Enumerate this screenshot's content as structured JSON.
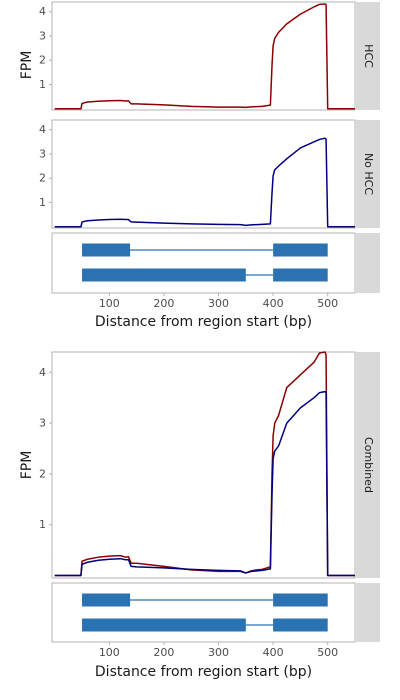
{
  "colors": {
    "hcc": "#8b0000",
    "no_hcc": "#00007f",
    "exon": "#2b72b3",
    "strip": "#d9d9d9",
    "frame": "#b3b3b3",
    "tick_text": "#4d4d4d",
    "title_text": "#1a1a1a"
  },
  "chart_data": [
    {
      "type": "line",
      "ylabel": "FPM",
      "xlabel": "Distance from region start (bp)",
      "xlim": [
        -5,
        550
      ],
      "x_ticks": [
        100,
        200,
        300,
        400,
        500
      ],
      "facets": [
        {
          "strip": "HCC",
          "ylim": [
            -0.05,
            4.4
          ],
          "y_ticks": [
            1,
            2,
            3,
            4
          ],
          "series": [
            {
              "color_key": "hcc",
              "x": [
                0,
                48,
                50,
                60,
                80,
                100,
                120,
                130,
                135,
                140,
                150,
                200,
                250,
                300,
                340,
                350,
                360,
                370,
                380,
                395,
                398,
                400,
                403,
                410,
                425,
                450,
                475,
                485,
                495,
                497,
                500,
                550
              ],
              "y": [
                0,
                0,
                0.22,
                0.28,
                0.31,
                0.33,
                0.34,
                0.32,
                0.33,
                0.2,
                0.2,
                0.16,
                0.1,
                0.07,
                0.07,
                0.06,
                0.08,
                0.09,
                0.1,
                0.15,
                1.8,
                2.6,
                2.9,
                3.15,
                3.5,
                3.9,
                4.2,
                4.3,
                4.32,
                4.3,
                0,
                0
              ]
            }
          ]
        },
        {
          "strip": "No HCC",
          "ylim": [
            -0.05,
            4.4
          ],
          "y_ticks": [
            1,
            2,
            3,
            4
          ],
          "series": [
            {
              "color_key": "no_hcc",
              "x": [
                0,
                48,
                50,
                60,
                80,
                100,
                120,
                130,
                135,
                140,
                150,
                200,
                250,
                300,
                340,
                350,
                360,
                370,
                380,
                395,
                398,
                400,
                403,
                410,
                425,
                450,
                475,
                485,
                495,
                497,
                500,
                550
              ],
              "y": [
                0,
                0,
                0.2,
                0.25,
                0.28,
                0.3,
                0.31,
                0.3,
                0.3,
                0.2,
                0.19,
                0.15,
                0.12,
                0.1,
                0.09,
                0.06,
                0.08,
                0.09,
                0.1,
                0.12,
                1.4,
                2.1,
                2.35,
                2.5,
                2.8,
                3.25,
                3.5,
                3.6,
                3.65,
                3.6,
                0,
                0
              ]
            }
          ]
        }
      ],
      "transcripts": [
        [
          [
            50,
            138
          ],
          [
            400,
            500
          ]
        ],
        [
          [
            50,
            350
          ],
          [
            400,
            500
          ]
        ]
      ]
    },
    {
      "type": "line",
      "ylabel": "FPM",
      "xlabel": "Distance from region start (bp)",
      "xlim": [
        -5,
        550
      ],
      "x_ticks": [
        100,
        200,
        300,
        400,
        500
      ],
      "facets": [
        {
          "strip": "Combined",
          "ylim": [
            -0.05,
            4.4
          ],
          "y_ticks": [
            1,
            2,
            3,
            4
          ],
          "series": [
            {
              "color_key": "hcc",
              "x": [
                0,
                48,
                50,
                60,
                80,
                100,
                120,
                130,
                135,
                140,
                150,
                200,
                250,
                300,
                340,
                350,
                360,
                370,
                380,
                395,
                398,
                400,
                403,
                410,
                425,
                450,
                475,
                485,
                495,
                497,
                500,
                550
              ],
              "y": [
                0,
                0,
                0.28,
                0.32,
                0.36,
                0.38,
                0.39,
                0.36,
                0.37,
                0.24,
                0.24,
                0.18,
                0.11,
                0.08,
                0.08,
                0.05,
                0.09,
                0.11,
                0.12,
                0.17,
                2.0,
                2.75,
                3.0,
                3.15,
                3.7,
                3.95,
                4.2,
                4.38,
                4.4,
                4.34,
                0,
                0
              ]
            },
            {
              "color_key": "no_hcc",
              "x": [
                0,
                48,
                50,
                60,
                80,
                100,
                120,
                130,
                135,
                140,
                150,
                200,
                250,
                300,
                340,
                350,
                360,
                370,
                380,
                395,
                398,
                400,
                403,
                410,
                425,
                450,
                475,
                485,
                495,
                497,
                500,
                550
              ],
              "y": [
                0,
                0,
                0.22,
                0.26,
                0.3,
                0.32,
                0.33,
                0.31,
                0.31,
                0.18,
                0.17,
                0.15,
                0.12,
                0.1,
                0.09,
                0.05,
                0.08,
                0.09,
                0.1,
                0.13,
                1.6,
                2.3,
                2.45,
                2.55,
                3.0,
                3.3,
                3.5,
                3.6,
                3.62,
                3.6,
                0,
                0
              ]
            }
          ]
        }
      ],
      "transcripts": [
        [
          [
            50,
            138
          ],
          [
            400,
            500
          ]
        ],
        [
          [
            50,
            350
          ],
          [
            400,
            500
          ]
        ]
      ]
    }
  ]
}
